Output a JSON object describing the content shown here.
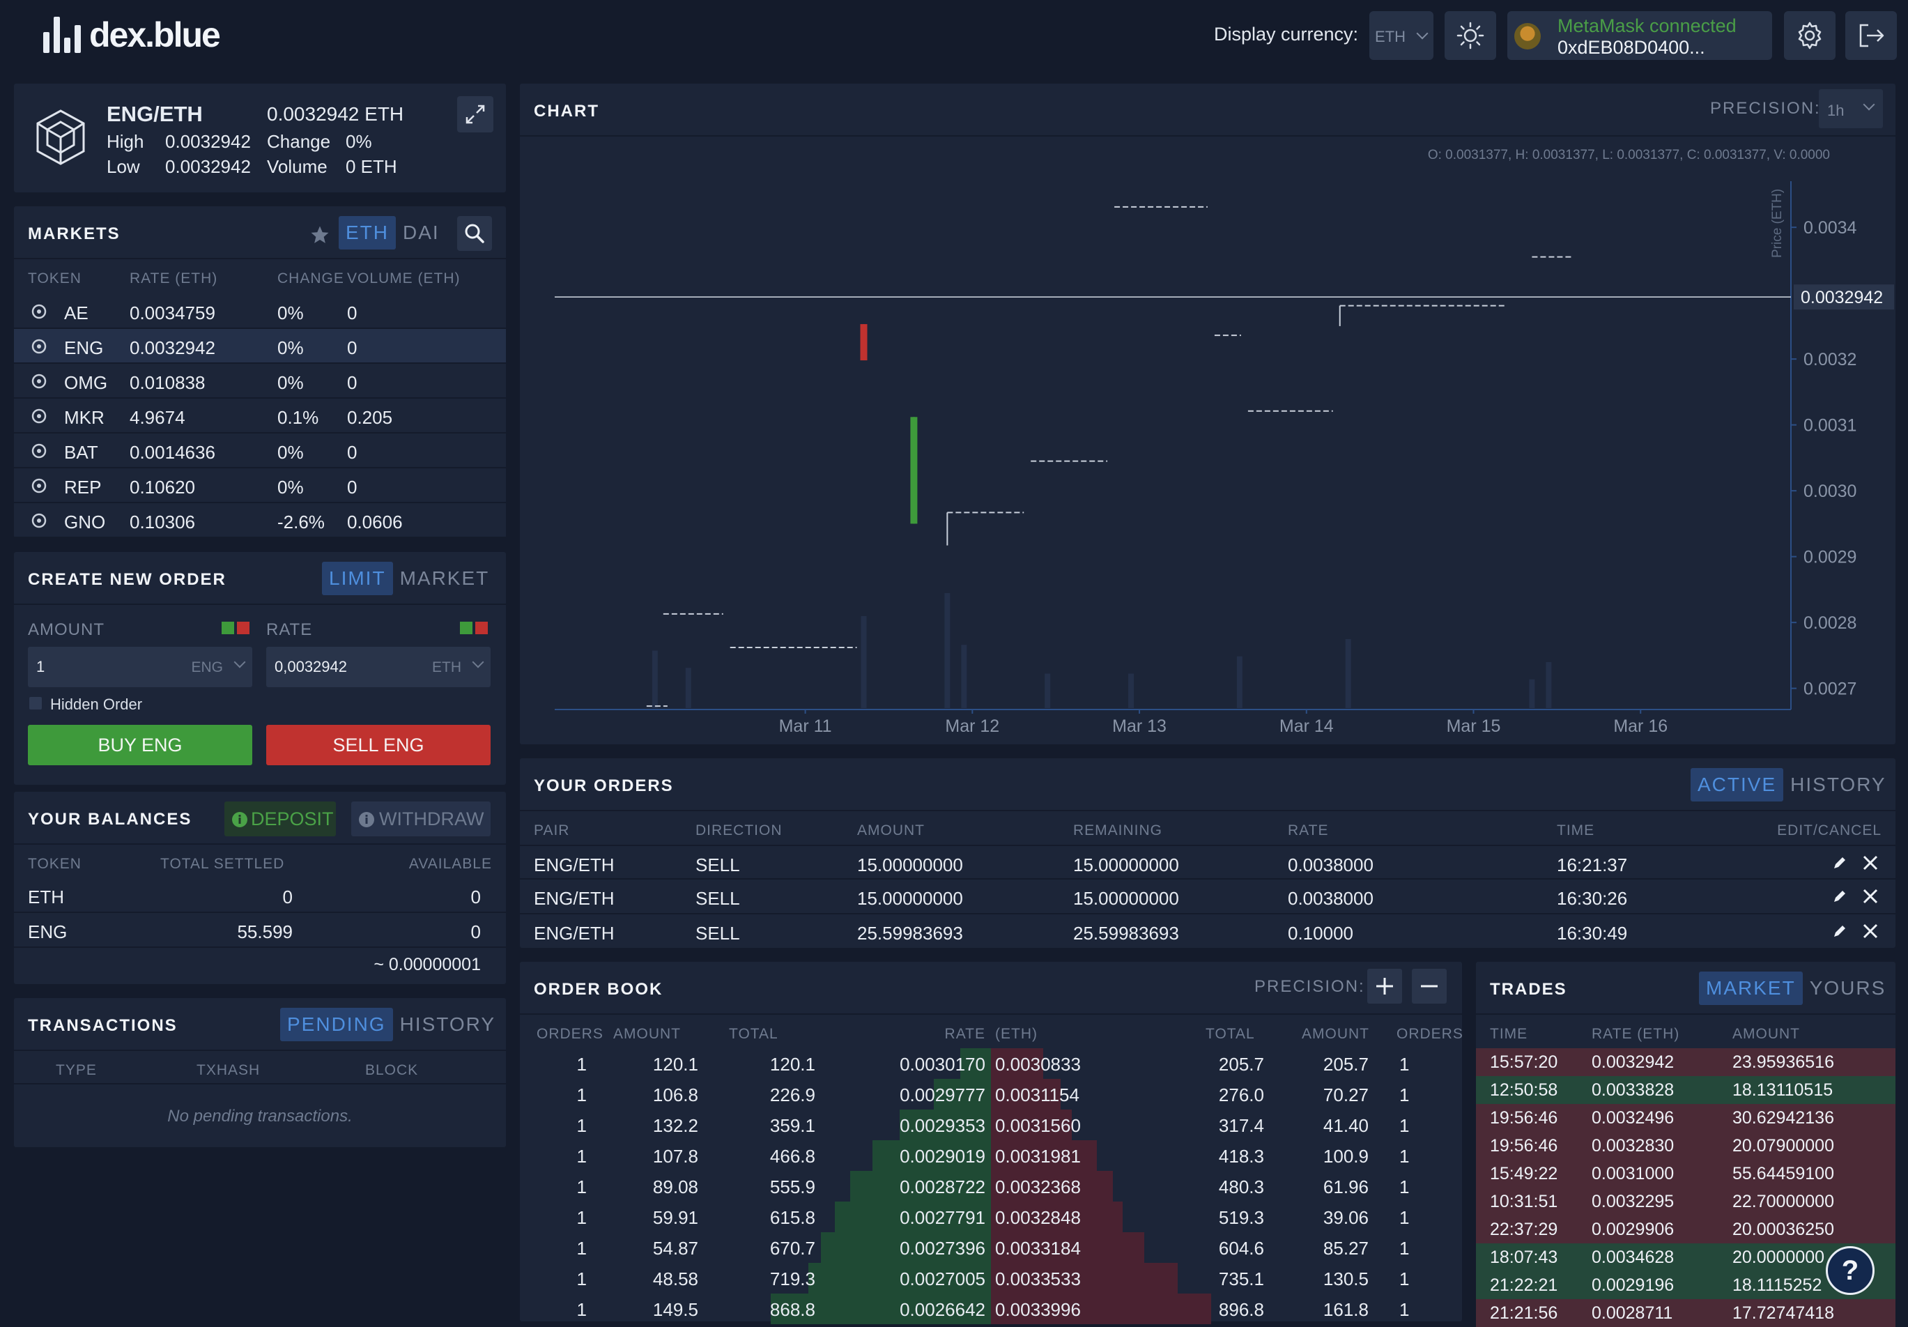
{
  "app": {
    "logo_text": "dex.blue"
  },
  "topbar": {
    "display_currency_label": "Display currency:",
    "display_currency_value": "ETH",
    "metamask_status": "MetaMask connected",
    "metamask_address": "0xdEB08D0400..."
  },
  "ticker": {
    "pair": "ENG/ETH",
    "price": "0.0032942 ETH",
    "high_label": "High",
    "high_value": "0.0032942",
    "low_label": "Low",
    "low_value": "0.0032942",
    "change_label": "Change",
    "change_value": "0%",
    "volume_label": "Volume",
    "volume_value": "0 ETH"
  },
  "markets": {
    "title": "MARKETS",
    "tabs": [
      "ETH",
      "DAI"
    ],
    "columns": [
      "TOKEN",
      "RATE (ETH)",
      "CHANGE",
      "VOLUME (ETH)"
    ],
    "rows": [
      {
        "token": "AE",
        "rate": "0.0034759",
        "change": "0%",
        "volume": "0",
        "icon": "ae-icon"
      },
      {
        "token": "ENG",
        "rate": "0.0032942",
        "change": "0%",
        "volume": "0",
        "icon": "eng-icon"
      },
      {
        "token": "OMG",
        "rate": "0.010838",
        "change": "0%",
        "volume": "0",
        "icon": "omg-icon"
      },
      {
        "token": "MKR",
        "rate": "4.9674",
        "change": "0.1%",
        "volume": "0.205",
        "icon": "mkr-icon"
      },
      {
        "token": "BAT",
        "rate": "0.0014636",
        "change": "0%",
        "volume": "0",
        "icon": "bat-icon"
      },
      {
        "token": "REP",
        "rate": "0.10620",
        "change": "0%",
        "volume": "0",
        "icon": "rep-icon"
      },
      {
        "token": "GNO",
        "rate": "0.10306",
        "change": "-2.6%",
        "volume": "0.0606",
        "icon": "gno-icon"
      }
    ]
  },
  "order_form": {
    "title": "CREATE NEW ORDER",
    "tabs": [
      "LIMIT",
      "MARKET"
    ],
    "amount_label": "AMOUNT",
    "amount_value": "1",
    "amount_unit": "ENG",
    "rate_label": "RATE",
    "rate_value": "0,0032942",
    "rate_unit": "ETH",
    "hidden_label": "Hidden Order",
    "buy_label": "BUY ENG",
    "sell_label": "SELL ENG"
  },
  "balances": {
    "title": "YOUR BALANCES",
    "deposit_label": "DEPOSIT",
    "withdraw_label": "WITHDRAW",
    "columns": [
      "TOKEN",
      "TOTAL SETTLED",
      "AVAILABLE"
    ],
    "rows": [
      {
        "token": "ETH",
        "total": "0",
        "available": "0"
      },
      {
        "token": "ENG",
        "total": "55.599",
        "available": "0"
      }
    ],
    "footer": "~ 0.00000001"
  },
  "transactions": {
    "title": "TRANSACTIONS",
    "tabs": [
      "PENDING",
      "HISTORY"
    ],
    "columns": [
      "TYPE",
      "TXHASH",
      "BLOCK"
    ],
    "empty": "No pending transactions."
  },
  "chart_panel": {
    "title": "CHART",
    "precision_label": "PRECISION:",
    "precision_value": "1h",
    "ohlc": "O: 0.0031377, H: 0.0031377, L: 0.0031377, C: 0.0031377, V: 0.0000",
    "ylabel": "Price (ETH)",
    "current_price": "0.0032942"
  },
  "chart_data": {
    "type": "candlestick",
    "xlabel": "",
    "ylabel": "Price (ETH)",
    "ylim": [
      0.00267,
      0.00347
    ],
    "x_ticks": [
      "Mar 11",
      "Mar 12",
      "Mar 13",
      "Mar 14",
      "Mar 15",
      "Mar 16"
    ],
    "y_ticks": [
      "0.0027",
      "0.0028",
      "0.0029",
      "0.0030",
      "0.0031",
      "0.0032",
      "0.0034"
    ],
    "current_price": 0.0032942,
    "candles": [
      {
        "t": 10.05,
        "o": 0.002673,
        "c": 0.002673,
        "h": 0.002673,
        "l": 0.002673
      },
      {
        "t": 10.15,
        "o": 0.002813,
        "c": 0.002813,
        "h": 0.002813,
        "l": 0.002813
      },
      {
        "t": 10.55,
        "o": 0.002762,
        "c": 0.002762,
        "h": 0.002762,
        "l": 0.002762
      },
      {
        "t": 11.35,
        "o": 0.003253,
        "c": 0.003198,
        "h": 0.003253,
        "l": 0.003198
      },
      {
        "t": 11.65,
        "o": 0.00295,
        "c": 0.003112,
        "h": 0.003112,
        "l": 0.00295
      },
      {
        "t": 11.85,
        "o": 0.002967,
        "c": 0.002967,
        "h": 0.002967,
        "l": 0.002917
      },
      {
        "t": 12.35,
        "o": 0.003045,
        "c": 0.003045,
        "h": 0.003045,
        "l": 0.003045
      },
      {
        "t": 12.85,
        "o": 0.003431,
        "c": 0.003431,
        "h": 0.003431,
        "l": 0.003431
      },
      {
        "t": 13.45,
        "o": 0.003236,
        "c": 0.003236,
        "h": 0.003236,
        "l": 0.003236
      },
      {
        "t": 13.65,
        "o": 0.003121,
        "c": 0.003121,
        "h": 0.003121,
        "l": 0.003121
      },
      {
        "t": 14.2,
        "o": 0.003281,
        "c": 0.003281,
        "h": 0.003281,
        "l": 0.00325
      },
      {
        "t": 15.35,
        "o": 0.003355,
        "c": 0.003355,
        "h": 0.003355,
        "l": 0.003355
      }
    ],
    "volume": [
      {
        "t": 10.1,
        "v": 0.5
      },
      {
        "t": 10.3,
        "v": 0.35
      },
      {
        "t": 11.35,
        "v": 0.8
      },
      {
        "t": 11.85,
        "v": 1.0
      },
      {
        "t": 11.95,
        "v": 0.55
      },
      {
        "t": 12.45,
        "v": 0.3
      },
      {
        "t": 12.95,
        "v": 0.3
      },
      {
        "t": 13.6,
        "v": 0.45
      },
      {
        "t": 14.25,
        "v": 0.6
      },
      {
        "t": 15.35,
        "v": 0.25
      },
      {
        "t": 15.45,
        "v": 0.4
      }
    ]
  },
  "your_orders": {
    "title": "YOUR ORDERS",
    "tabs": [
      "ACTIVE",
      "HISTORY"
    ],
    "columns": [
      "PAIR",
      "DIRECTION",
      "AMOUNT",
      "REMAINING",
      "RATE",
      "TIME",
      "EDIT/CANCEL"
    ],
    "rows": [
      {
        "pair": "ENG/ETH",
        "direction": "SELL",
        "amount": "15",
        "amount_dim": ".00000000",
        "remaining": "15",
        "remaining_dim": ".00000000",
        "rate": "0.0038",
        "rate_dim": "000",
        "time": "16:21:37"
      },
      {
        "pair": "ENG/ETH",
        "direction": "SELL",
        "amount": "15",
        "amount_dim": ".00000000",
        "remaining": "15",
        "remaining_dim": ".00000000",
        "rate": "0.0038",
        "rate_dim": "000",
        "time": "16:30:26"
      },
      {
        "pair": "ENG/ETH",
        "direction": "SELL",
        "amount": "25.59983693",
        "amount_dim": "",
        "remaining": "25.59983693",
        "remaining_dim": "",
        "rate": "0.1",
        "rate_dim": "0000",
        "time": "16:30:49"
      }
    ]
  },
  "order_book": {
    "title": "ORDER BOOK",
    "precision_label": "PRECISION:",
    "columns": [
      "ORDERS",
      "AMOUNT",
      "TOTAL",
      "RATE",
      "(ETH)",
      "TOTAL",
      "AMOUNT",
      "ORDERS"
    ],
    "rows": [
      {
        "bo": "1",
        "ba": "120.1",
        "bt": "120.1",
        "br": "0.003017",
        "brd": "0",
        "ar": "0.0030833",
        "ard": "",
        "at": "205.7",
        "atd": "",
        "aa": "205.7",
        "aad": "",
        "ao": "1",
        "bd": 0.138,
        "ad": 0.237
      },
      {
        "bo": "1",
        "ba": "106.8",
        "bt": "226.9",
        "br": "0.0029777",
        "brd": "",
        "ar": "0.0031154",
        "ard": "",
        "at": "276.",
        "atd": "0",
        "aa": "70.27",
        "aad": "",
        "ao": "1",
        "bd": 0.261,
        "ad": 0.318
      },
      {
        "bo": "1",
        "ba": "132.2",
        "bt": "359.1",
        "br": "0.0029353",
        "brd": "",
        "ar": "0.003156",
        "ard": "0",
        "at": "317.4",
        "atd": "",
        "aa": "41.4",
        "aad": "0",
        "ao": "1",
        "bd": 0.414,
        "ad": 0.366
      },
      {
        "bo": "1",
        "ba": "107.8",
        "bt": "466.8",
        "br": "0.0029019",
        "brd": "",
        "ar": "0.0031981",
        "ard": "",
        "at": "418.3",
        "atd": "",
        "aa": "100.9",
        "aad": "",
        "ao": "1",
        "bd": 0.538,
        "ad": 0.482
      },
      {
        "bo": "1",
        "ba": "89.08",
        "bt": "555.9",
        "br": "0.0028722",
        "brd": "",
        "ar": "0.0032368",
        "ard": "",
        "at": "480.3",
        "atd": "",
        "aa": "61.96",
        "aad": "",
        "ao": "1",
        "bd": 0.64,
        "ad": 0.553
      },
      {
        "bo": "1",
        "ba": "59.91",
        "bt": "615.8",
        "br": "0.0027791",
        "brd": "",
        "ar": "0.0032848",
        "ard": "",
        "at": "519.3",
        "atd": "",
        "aa": "39.06",
        "aad": "",
        "ao": "1",
        "bd": 0.709,
        "ad": 0.598
      },
      {
        "bo": "1",
        "ba": "54.87",
        "bt": "670.7",
        "br": "0.0027396",
        "brd": "",
        "ar": "0.0033184",
        "ard": "",
        "at": "604.6",
        "atd": "",
        "aa": "85.27",
        "aad": "",
        "ao": "1",
        "bd": 0.773,
        "ad": 0.697
      },
      {
        "bo": "1",
        "ba": "48.58",
        "bt": "719.3",
        "br": "0.0027005",
        "brd": "",
        "ar": "0.0033533",
        "ard": "",
        "at": "735.1",
        "atd": "",
        "aa": "130.5",
        "aad": "",
        "ao": "1",
        "bd": 0.829,
        "ad": 0.847
      },
      {
        "bo": "1",
        "ba": "149.5",
        "bt": "868.8",
        "br": "0.0026642",
        "brd": "",
        "ar": "0.0033996",
        "ard": "",
        "at": "896.8",
        "atd": "",
        "aa": "161.8",
        "aad": "",
        "ao": "1",
        "bd": 1.0,
        "ad": 1.0
      }
    ]
  },
  "trades": {
    "title": "TRADES",
    "tabs": [
      "MARKET",
      "YOURS"
    ],
    "columns": [
      "TIME",
      "RATE (ETH)",
      "AMOUNT"
    ],
    "rows": [
      {
        "time": "15:57:20",
        "rate": "0.0032942",
        "rate_dim": "",
        "amount": "23.95936516",
        "side": "sell"
      },
      {
        "time": "12:50:58",
        "rate": "0.0033828",
        "rate_dim": "",
        "amount": "18.13110515",
        "side": "buy"
      },
      {
        "time": "19:56:46",
        "rate": "0.0032496",
        "rate_dim": "",
        "amount": "30.62942136",
        "side": "sell"
      },
      {
        "time": "19:56:46",
        "rate": "0.003283",
        "rate_dim": "0",
        "amount": "20.07900000",
        "side": "sell"
      },
      {
        "time": "15:49:22",
        "rate": "0.0031",
        "rate_dim": "000",
        "amount": "55.64459100",
        "side": "sell"
      },
      {
        "time": "10:31:51",
        "rate": "0.0032295",
        "rate_dim": "",
        "amount": "22.70000000",
        "side": "sell"
      },
      {
        "time": "22:37:29",
        "rate": "0.0029906",
        "rate_dim": "",
        "amount": "20.00036250",
        "side": "sell"
      },
      {
        "time": "18:07:43",
        "rate": "0.0034628",
        "rate_dim": "",
        "amount": "20.0000000",
        "side": "buy"
      },
      {
        "time": "21:22:21",
        "rate": "0.0029196",
        "rate_dim": "",
        "amount": "18.1115252",
        "side": "buy"
      },
      {
        "time": "21:21:56",
        "rate": "0.0028711",
        "rate_dim": "",
        "amount": "17.72747418",
        "side": "sell"
      }
    ]
  },
  "help": {
    "label": "?"
  },
  "colors": {
    "bg": "#141b2b",
    "panel": "#1c2538",
    "accent": "#4f8fde",
    "buy": "#3e9a3b",
    "sell": "#c0322f"
  }
}
